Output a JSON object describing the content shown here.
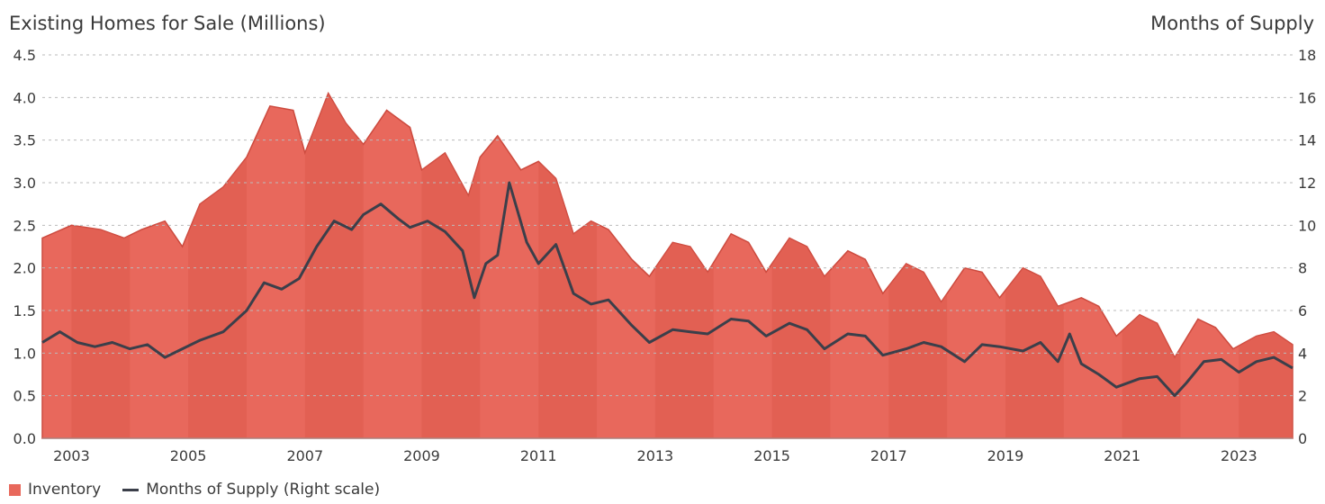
{
  "chart_data": {
    "type": "area",
    "left_axis_title": "Existing Homes for Sale (Millions)",
    "right_axis_title": "Months of Supply",
    "left_ylim": [
      0,
      4.5
    ],
    "right_ylim": [
      0,
      18
    ],
    "left_ticks": [
      "0.0",
      "0.5",
      "1.0",
      "1.5",
      "2.0",
      "2.5",
      "3.0",
      "3.5",
      "4.0",
      "4.5"
    ],
    "right_ticks": [
      "0",
      "2",
      "4",
      "6",
      "8",
      "10",
      "12",
      "14",
      "16",
      "18"
    ],
    "x_ticks": [
      "2003",
      "2005",
      "2007",
      "2009",
      "2011",
      "2013",
      "2015",
      "2017",
      "2019",
      "2021",
      "2023"
    ],
    "xlim": [
      2002.5,
      2023.92
    ],
    "grid": true,
    "legend_position": "bottom-left",
    "series": [
      {
        "name": "Inventory",
        "axis": "left",
        "x": [
          2002.5,
          2003.0,
          2003.5,
          2003.9,
          2004.2,
          2004.6,
          2004.9,
          2005.2,
          2005.6,
          2006.0,
          2006.4,
          2006.8,
          2007.0,
          2007.4,
          2007.7,
          2008.0,
          2008.4,
          2008.8,
          2009.0,
          2009.4,
          2009.8,
          2010.0,
          2010.3,
          2010.7,
          2011.0,
          2011.3,
          2011.6,
          2011.9,
          2012.2,
          2012.6,
          2012.9,
          2013.3,
          2013.6,
          2013.9,
          2014.3,
          2014.6,
          2014.9,
          2015.3,
          2015.6,
          2015.9,
          2016.3,
          2016.6,
          2016.9,
          2017.3,
          2017.6,
          2017.9,
          2018.3,
          2018.6,
          2018.9,
          2019.3,
          2019.6,
          2019.9,
          2020.3,
          2020.6,
          2020.9,
          2021.3,
          2021.6,
          2021.9,
          2022.3,
          2022.6,
          2022.9,
          2023.3,
          2023.6,
          2023.92
        ],
        "values": [
          2.35,
          2.5,
          2.45,
          2.35,
          2.45,
          2.55,
          2.25,
          2.75,
          2.95,
          3.3,
          3.9,
          3.85,
          3.35,
          4.05,
          3.7,
          3.45,
          3.85,
          3.65,
          3.15,
          3.35,
          2.85,
          3.3,
          3.55,
          3.15,
          3.25,
          3.05,
          2.4,
          2.55,
          2.45,
          2.1,
          1.9,
          2.3,
          2.25,
          1.95,
          2.4,
          2.3,
          1.95,
          2.35,
          2.25,
          1.9,
          2.2,
          2.1,
          1.7,
          2.05,
          1.95,
          1.6,
          2.0,
          1.95,
          1.65,
          2.0,
          1.9,
          1.55,
          1.65,
          1.55,
          1.2,
          1.45,
          1.35,
          0.95,
          1.4,
          1.3,
          1.05,
          1.2,
          1.25,
          1.1
        ]
      },
      {
        "name": "Months of Supply (Right scale)",
        "axis": "right",
        "x": [
          2002.5,
          2002.8,
          2003.1,
          2003.4,
          2003.7,
          2004.0,
          2004.3,
          2004.6,
          2004.9,
          2005.2,
          2005.6,
          2006.0,
          2006.3,
          2006.6,
          2006.9,
          2007.2,
          2007.5,
          2007.8,
          2008.0,
          2008.3,
          2008.6,
          2008.8,
          2009.1,
          2009.4,
          2009.7,
          2009.9,
          2010.1,
          2010.3,
          2010.5,
          2010.8,
          2011.0,
          2011.3,
          2011.6,
          2011.9,
          2012.2,
          2012.6,
          2012.9,
          2013.3,
          2013.6,
          2013.9,
          2014.3,
          2014.6,
          2014.9,
          2015.3,
          2015.6,
          2015.9,
          2016.3,
          2016.6,
          2016.9,
          2017.3,
          2017.6,
          2017.9,
          2018.3,
          2018.6,
          2018.9,
          2019.3,
          2019.6,
          2019.9,
          2020.1,
          2020.3,
          2020.6,
          2020.9,
          2021.3,
          2021.6,
          2021.9,
          2022.1,
          2022.4,
          2022.7,
          2023.0,
          2023.3,
          2023.6,
          2023.92
        ],
        "values": [
          4.5,
          5.0,
          4.5,
          4.3,
          4.5,
          4.2,
          4.4,
          3.8,
          4.2,
          4.6,
          5.0,
          6.0,
          7.3,
          7.0,
          7.5,
          9.0,
          10.2,
          9.8,
          10.5,
          11.0,
          10.3,
          9.9,
          10.2,
          9.7,
          8.8,
          6.6,
          8.2,
          8.6,
          12.0,
          9.2,
          8.2,
          9.1,
          6.8,
          6.3,
          6.5,
          5.3,
          4.5,
          5.1,
          5.0,
          4.9,
          5.6,
          5.5,
          4.8,
          5.4,
          5.1,
          4.2,
          4.9,
          4.8,
          3.9,
          4.2,
          4.5,
          4.3,
          3.6,
          4.4,
          4.3,
          4.1,
          4.5,
          3.6,
          4.9,
          3.5,
          3.0,
          2.4,
          2.8,
          2.9,
          2.0,
          2.6,
          3.6,
          3.7,
          3.1,
          3.6,
          3.8,
          3.3
        ]
      }
    ]
  },
  "colors": {
    "inventory_fill": "#e8685c",
    "inventory_top": "#cc4a3e",
    "inventory_band_dark": "#dc5a4d",
    "line": "#3b3f4a",
    "grid": "#bbbbbb"
  }
}
